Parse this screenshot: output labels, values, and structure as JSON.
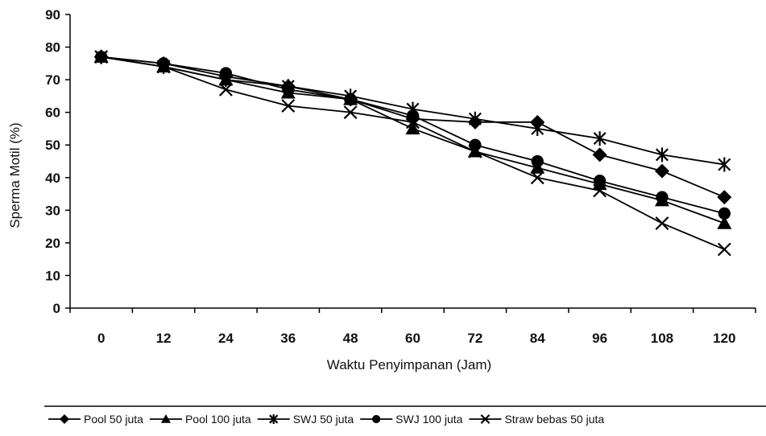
{
  "chart_data": {
    "type": "line",
    "xlabel": "Waktu Penyimpanan (Jam)",
    "ylabel": "Sperma Motil (%)",
    "x": [
      0,
      12,
      24,
      36,
      48,
      60,
      72,
      84,
      96,
      108,
      120
    ],
    "ylim": [
      0,
      90
    ],
    "yticks": [
      0,
      10,
      20,
      30,
      40,
      50,
      60,
      70,
      80,
      90
    ],
    "grid": false,
    "legend_position": "bottom",
    "series": [
      {
        "name": "Pool 50 juta",
        "marker": "diamond",
        "color": "#000000",
        "values": [
          77,
          75,
          71,
          68,
          64,
          58,
          57,
          57,
          47,
          42,
          34
        ]
      },
      {
        "name": "Pool 100 juta",
        "marker": "triangle",
        "color": "#000000",
        "values": [
          77,
          74,
          70,
          66,
          64,
          55,
          48,
          43,
          38,
          33,
          26
        ]
      },
      {
        "name": "SWJ 50 juta",
        "marker": "asterisk",
        "color": "#000000",
        "values": [
          77,
          74,
          70,
          68,
          65,
          61,
          58,
          55,
          52,
          47,
          44
        ]
      },
      {
        "name": "SWJ 100 juta",
        "marker": "circle",
        "color": "#000000",
        "values": [
          77,
          75,
          72,
          67,
          64,
          59,
          50,
          45,
          39,
          34,
          29
        ]
      },
      {
        "name": "Straw bebas 50 juta",
        "marker": "x",
        "color": "#000000",
        "values": [
          77,
          74,
          67,
          62,
          60,
          57,
          48,
          40,
          36,
          26,
          18
        ]
      }
    ]
  }
}
